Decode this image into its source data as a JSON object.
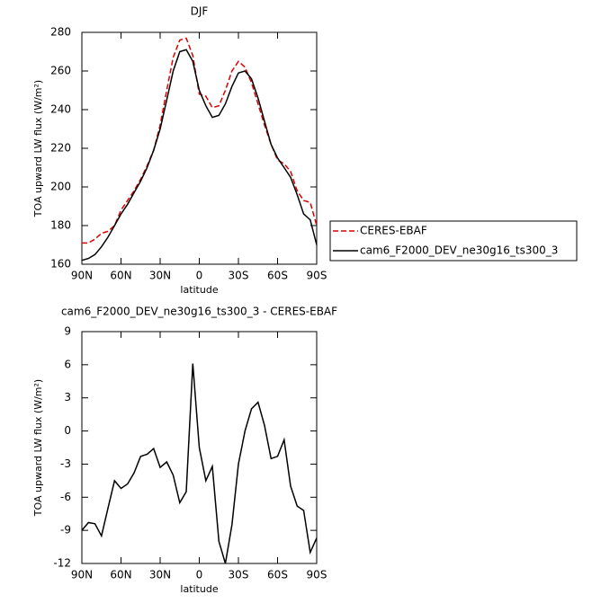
{
  "chart_data": [
    {
      "type": "line",
      "title": "DJF",
      "x_label": "latitude",
      "y_label": "TOA upward LW flux (W/m²)",
      "x": [
        90,
        85,
        80,
        75,
        70,
        65,
        60,
        55,
        50,
        45,
        40,
        35,
        30,
        25,
        20,
        15,
        10,
        5,
        0,
        -5,
        -10,
        -15,
        -20,
        -25,
        -30,
        -35,
        -40,
        -45,
        -50,
        -55,
        -60,
        -65,
        -70,
        -75,
        -80,
        -85,
        -90
      ],
      "series": [
        {
          "name": "CERES-EBAF",
          "color": "#e00000",
          "dashed": true,
          "values": [
            171,
            171,
            173,
            176,
            177,
            180,
            188,
            193,
            198,
            204,
            211,
            219,
            232,
            250,
            267,
            276,
            277,
            268,
            248,
            247,
            241,
            242,
            250,
            260,
            265,
            262,
            254,
            243,
            232,
            222,
            214,
            212,
            208,
            198,
            193,
            192,
            180
          ]
        },
        {
          "name": "cam6_F2000_DEV_ne30g16_ts300_3",
          "color": "#000000",
          "dashed": false,
          "values": [
            162,
            163,
            165,
            169,
            174,
            180,
            186,
            191,
            197,
            203,
            210,
            219,
            230,
            245,
            260,
            270,
            271,
            265,
            250,
            242,
            236,
            237,
            243,
            252,
            259,
            260,
            256,
            246,
            234,
            222,
            215,
            210,
            205,
            196,
            186,
            183,
            170
          ]
        }
      ],
      "xlim": [
        90,
        -90
      ],
      "xticks": [
        {
          "value": 90,
          "label": "90N"
        },
        {
          "value": 60,
          "label": "60N"
        },
        {
          "value": 30,
          "label": "30N"
        },
        0,
        {
          "value": -30,
          "label": "30S"
        },
        {
          "value": -60,
          "label": "60S"
        },
        {
          "value": -90,
          "label": "90S"
        }
      ],
      "ylim": [
        160,
        280
      ],
      "yticks": [
        160,
        180,
        200,
        220,
        240,
        260,
        280
      ],
      "legend": "right"
    },
    {
      "type": "line",
      "title": "cam6_F2000_DEV_ne30g16_ts300_3 - CERES-EBAF",
      "x_label": "latitude",
      "y_label": "TOA upward LW flux (W/m²)",
      "x": [
        90,
        85,
        80,
        75,
        70,
        65,
        60,
        55,
        50,
        45,
        40,
        35,
        30,
        25,
        20,
        15,
        10,
        5,
        0,
        -5,
        -10,
        -15,
        -20,
        -25,
        -30,
        -35,
        -40,
        -45,
        -50,
        -55,
        -60,
        -65,
        -70,
        -75,
        -80,
        -85,
        -90
      ],
      "values": [
        -9,
        -8.3,
        -8.4,
        -9.5,
        -7,
        -4.5,
        -5.2,
        -4.8,
        -3.8,
        -2.3,
        -2.1,
        -1.6,
        -3.3,
        -2.8,
        -4,
        -6.5,
        -5.5,
        6.1,
        -1.5,
        -4.5,
        -3.2,
        -10,
        -12,
        -8.5,
        -3,
        0,
        2,
        2.6,
        0.5,
        -2.5,
        -2.3,
        -0.8,
        -5,
        -6.8,
        -7.2,
        -11,
        -9.7
      ],
      "color": "#000000",
      "xlim": [
        90,
        -90
      ],
      "xticks": [
        {
          "value": 90,
          "label": "90N"
        },
        {
          "value": 60,
          "label": "60N"
        },
        {
          "value": 30,
          "label": "30N"
        },
        0,
        {
          "value": -30,
          "label": "30S"
        },
        {
          "value": -60,
          "label": "60S"
        },
        {
          "value": -90,
          "label": "90S"
        }
      ],
      "ylim": [
        -12,
        9
      ],
      "yticks": [
        -12,
        -9,
        -6,
        -3,
        0,
        3,
        6,
        9
      ]
    }
  ]
}
